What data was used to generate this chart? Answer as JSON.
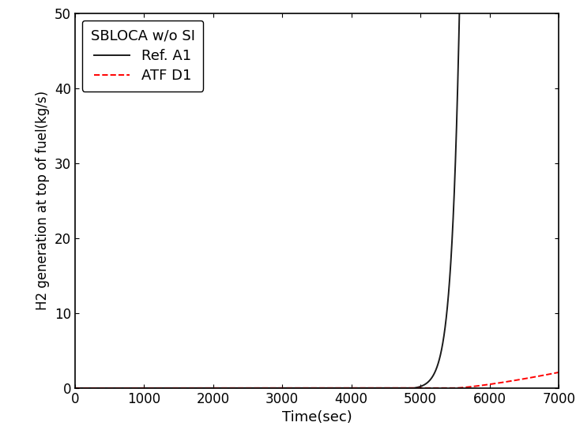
{
  "title": "",
  "xlabel": "Time(sec)",
  "ylabel": "H2 generation at top of fuel(kg/s)",
  "xlim": [
    0,
    7000
  ],
  "ylim": [
    0,
    50
  ],
  "xticks": [
    0,
    1000,
    2000,
    3000,
    4000,
    5000,
    6000,
    7000
  ],
  "yticks": [
    0,
    10,
    20,
    30,
    40,
    50
  ],
  "legend_title": "SBLOCA w/o SI",
  "legend_entries": [
    "Ref. A1",
    "ATF D1"
  ],
  "line_colors": [
    "#1a1a1a",
    "#ff0000"
  ],
  "line_styles": [
    "-",
    "--"
  ],
  "background_color": "#ffffff",
  "ref_a1_rise_start": 4900,
  "ref_a1_peak_time": 5530,
  "ref_a1_peak_value": 37.5,
  "atf_d1_start": 5500,
  "atf_d1_end_time": 7000,
  "atf_d1_end_value": 2.1,
  "font_size": 13,
  "tick_font_size": 12,
  "linewidth": 1.4
}
